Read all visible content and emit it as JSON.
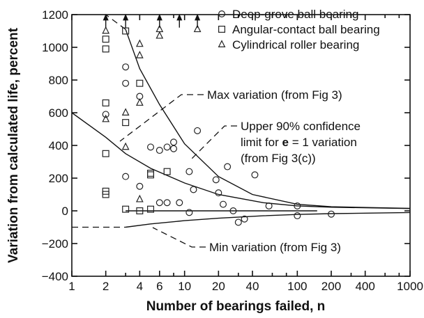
{
  "chart_data": {
    "type": "scatter",
    "xlabel": "Number of bearings failed, ",
    "xlabel_var": "n",
    "ylabel": "Variation from calculated life, percent",
    "xscale": "log",
    "xlim": [
      1,
      1000
    ],
    "ylim": [
      -400,
      1200
    ],
    "x_ticks": [
      {
        "value": 1,
        "label": "1"
      },
      {
        "value": 2,
        "label": "2"
      },
      {
        "value": 4,
        "label": "4"
      },
      {
        "value": 6,
        "label": "6"
      },
      {
        "value": 10,
        "label": "10"
      },
      {
        "value": 20,
        "label": "20"
      },
      {
        "value": 40,
        "label": "40"
      },
      {
        "value": 100,
        "label": "100"
      },
      {
        "value": 200,
        "label": "200"
      },
      {
        "value": 400,
        "label": "400"
      },
      {
        "value": 1000,
        "label": "1000"
      }
    ],
    "x_minor_ticks": [
      3,
      8,
      30,
      60,
      80,
      300,
      600,
      800
    ],
    "y_ticks": [
      {
        "value": -400,
        "label": "−400"
      },
      {
        "value": -200,
        "label": "−200"
      },
      {
        "value": 0,
        "label": "0"
      },
      {
        "value": 200,
        "label": "200"
      },
      {
        "value": 400,
        "label": "400"
      },
      {
        "value": 600,
        "label": "600"
      },
      {
        "value": 800,
        "label": "800"
      },
      {
        "value": 1000,
        "label": "1000"
      },
      {
        "value": 1200,
        "label": "1200"
      }
    ],
    "legend_position": "top-right",
    "series": [
      {
        "name": "Deep-grove ball bearing",
        "marker": "circle",
        "points": [
          [
            2,
            590
          ],
          [
            3,
            880
          ],
          [
            3,
            780
          ],
          [
            3,
            210
          ],
          [
            4,
            150
          ],
          [
            4,
            700
          ],
          [
            5,
            390
          ],
          [
            6,
            370
          ],
          [
            6,
            50
          ],
          [
            7,
            390
          ],
          [
            7,
            50
          ],
          [
            8,
            420
          ],
          [
            8,
            380
          ],
          [
            9,
            50
          ],
          [
            11,
            240
          ],
          [
            11,
            -10
          ],
          [
            12,
            130
          ],
          [
            13,
            490
          ],
          [
            19,
            190
          ],
          [
            20,
            110
          ],
          [
            22,
            40
          ],
          [
            24,
            270
          ],
          [
            27,
            0
          ],
          [
            30,
            -70
          ],
          [
            34,
            -50
          ],
          [
            42,
            220
          ],
          [
            56,
            30
          ],
          [
            100,
            30
          ],
          [
            100,
            -30
          ],
          [
            200,
            -20
          ]
        ]
      },
      {
        "name": "Angular-contact ball bearing",
        "marker": "square",
        "points": [
          [
            2,
            1050
          ],
          [
            2,
            990
          ],
          [
            2,
            660
          ],
          [
            2,
            350
          ],
          [
            2,
            120
          ],
          [
            2,
            100
          ],
          [
            3,
            1100
          ],
          [
            3,
            540
          ],
          [
            3,
            10
          ],
          [
            4,
            780
          ],
          [
            4,
            0
          ],
          [
            5,
            230
          ],
          [
            5,
            220
          ],
          [
            5,
            10
          ],
          [
            7,
            240
          ]
        ]
      },
      {
        "name": "Cylindrical roller bearing",
        "marker": "triangle",
        "points": [
          [
            2,
            1100
          ],
          [
            2,
            560
          ],
          [
            3,
            600
          ],
          [
            3,
            390
          ],
          [
            4,
            1020
          ],
          [
            4,
            950
          ],
          [
            4,
            660
          ],
          [
            4,
            70
          ],
          [
            6,
            1110
          ],
          [
            6,
            1070
          ],
          [
            13,
            1110
          ]
        ]
      }
    ],
    "runouts": [
      2,
      3,
      6,
      9,
      13
    ],
    "runout_value": 1180,
    "annotations": [
      {
        "id": "max",
        "text": "Max variation (from Fig 3)"
      },
      {
        "id": "upper1",
        "text": "Upper 90% confidence"
      },
      {
        "id": "upper2a",
        "text": "limit for "
      },
      {
        "id": "upper2b",
        "text": "e"
      },
      {
        "id": "upper2c",
        "text": " = 1 variation"
      },
      {
        "id": "upper3",
        "text": "(from Fig 3(c))"
      },
      {
        "id": "min",
        "text": "Min variation (from Fig 3)"
      }
    ],
    "curves": {
      "max_variation": [
        [
          3,
          1110
        ],
        [
          4,
          870
        ],
        [
          6,
          650
        ],
        [
          10,
          410
        ],
        [
          20,
          210
        ],
        [
          40,
          100
        ],
        [
          100,
          40
        ],
        [
          200,
          25
        ],
        [
          1000,
          15
        ]
      ],
      "upper_90_confidence": [
        [
          1,
          600
        ],
        [
          2,
          450
        ],
        [
          3,
          350
        ],
        [
          5,
          260
        ],
        [
          10,
          170
        ],
        [
          20,
          100
        ],
        [
          50,
          50
        ],
        [
          100,
          30
        ],
        [
          200,
          22
        ],
        [
          1000,
          14
        ]
      ],
      "min_variation": [
        [
          3,
          -100
        ],
        [
          5,
          -80
        ],
        [
          10,
          -60
        ],
        [
          20,
          -45
        ],
        [
          50,
          -30
        ],
        [
          100,
          -22
        ],
        [
          200,
          -17
        ],
        [
          1000,
          -10
        ]
      ],
      "zero_line": [
        [
          3,
          0
        ],
        [
          150,
          0
        ]
      ]
    }
  }
}
